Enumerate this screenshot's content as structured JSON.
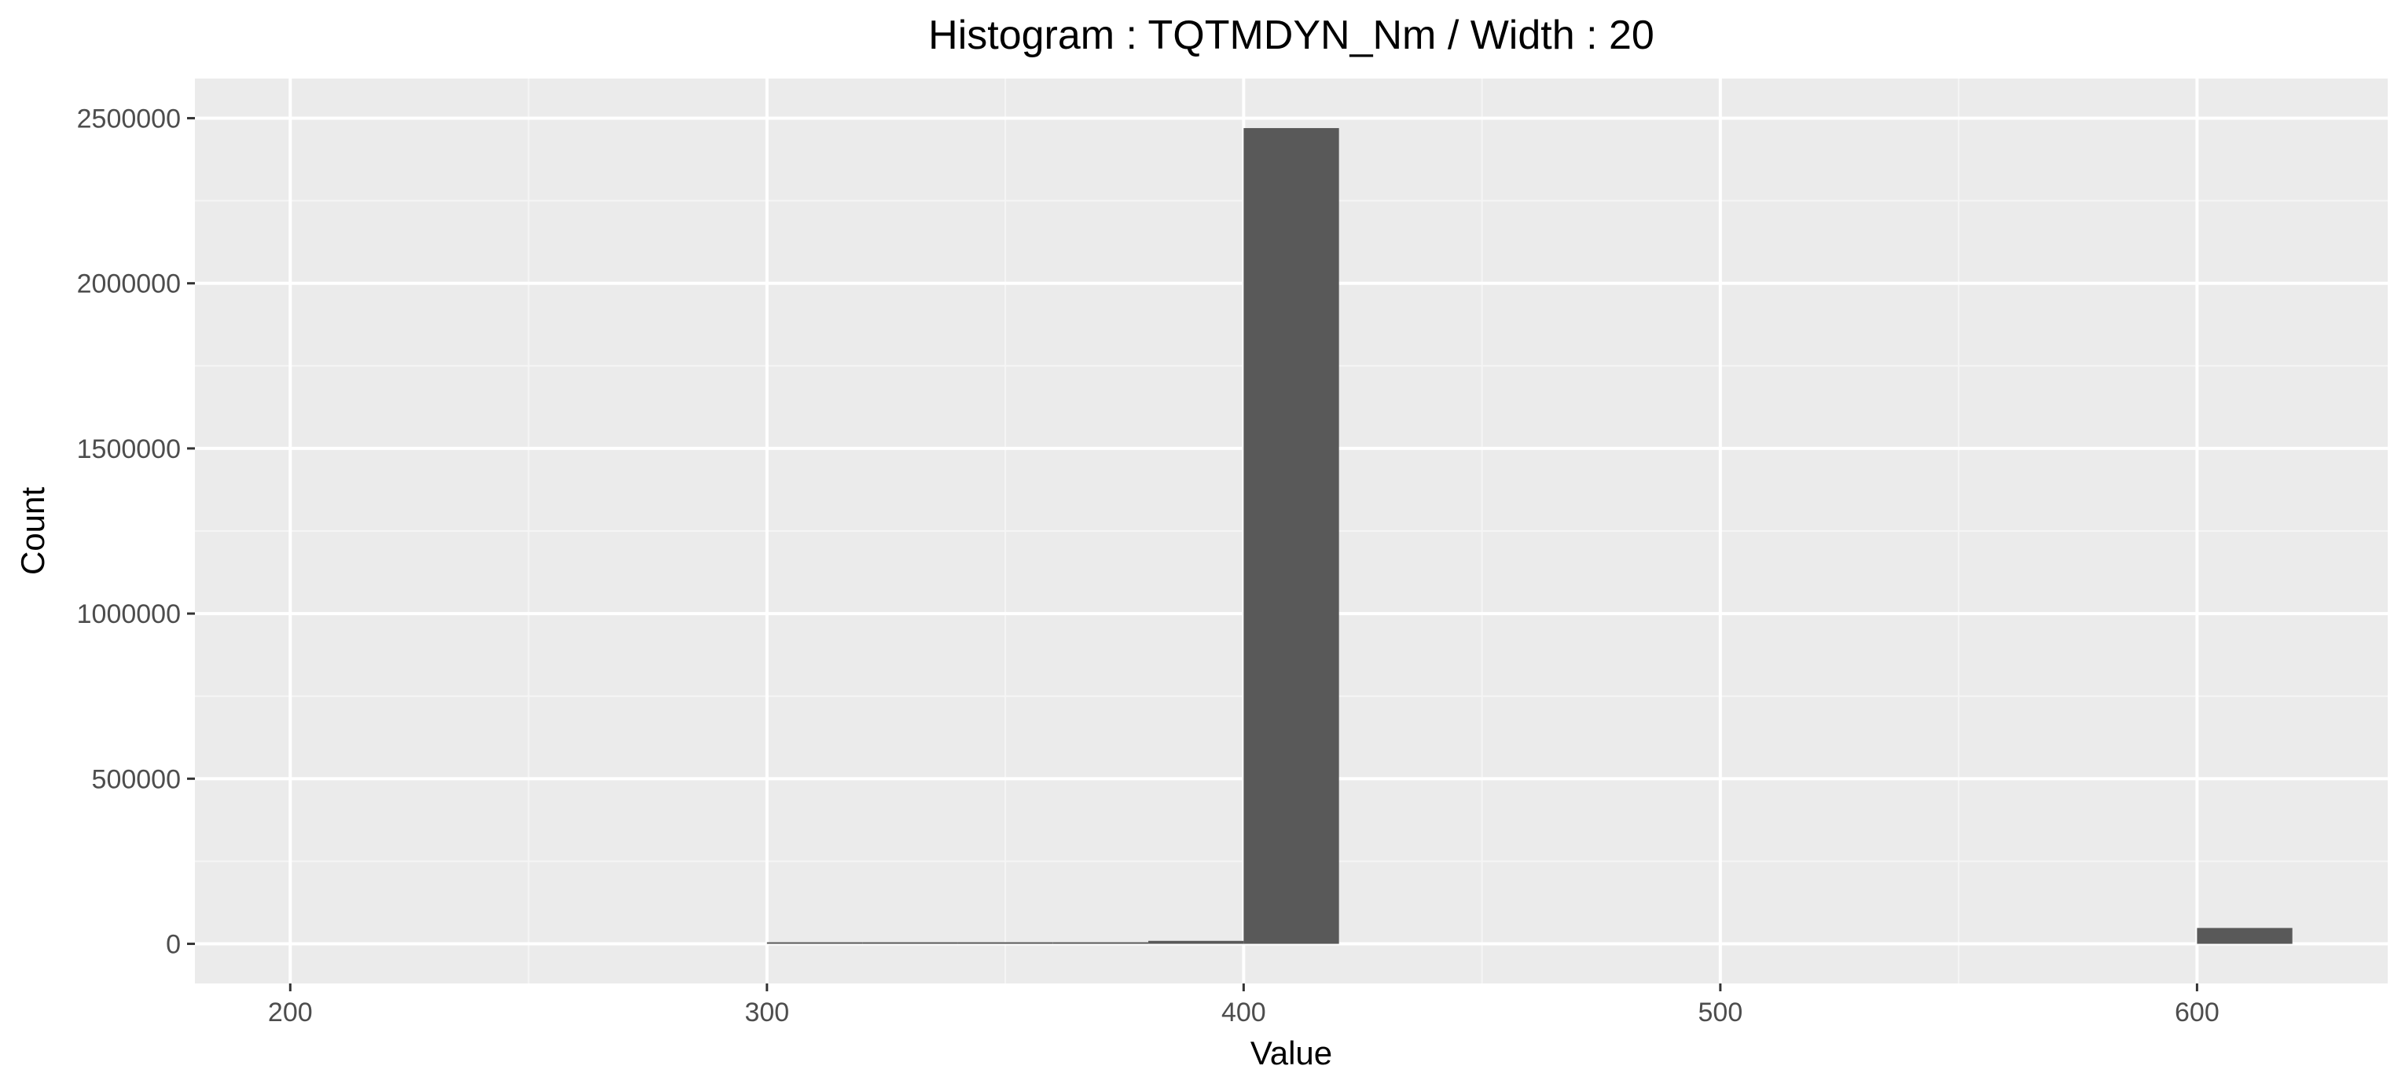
{
  "chart_data": {
    "type": "bar",
    "title": "Histogram : TQTMDYN_Nm / Width : 20",
    "xlabel": "Value",
    "ylabel": "Count",
    "bin_width": 20,
    "xlim": [
      180,
      640
    ],
    "ylim": [
      -120000,
      2620000
    ],
    "x_ticks": [
      200,
      300,
      400,
      500,
      600
    ],
    "y_ticks": [
      0,
      500000,
      1000000,
      1500000,
      2000000,
      2500000
    ],
    "x_tick_labels": [
      "200",
      "300",
      "400",
      "500",
      "600"
    ],
    "y_tick_labels": [
      "0",
      "500000",
      "1000000",
      "1500000",
      "2000000",
      "2500000"
    ],
    "bins": [
      {
        "start": 300,
        "end": 320,
        "count": 1000
      },
      {
        "start": 320,
        "end": 340,
        "count": 1500
      },
      {
        "start": 340,
        "end": 360,
        "count": 2000
      },
      {
        "start": 360,
        "end": 380,
        "count": 3000
      },
      {
        "start": 380,
        "end": 400,
        "count": 9000
      },
      {
        "start": 400,
        "end": 420,
        "count": 2470000
      },
      {
        "start": 600,
        "end": 620,
        "count": 48000
      }
    ],
    "grid": true,
    "legend": "none",
    "colors": {
      "panel_background": "#ebebeb",
      "grid_major": "#ffffff",
      "grid_minor": "#f5f5f5",
      "bar_fill": "#595959",
      "tick_mark": "#333333"
    }
  }
}
